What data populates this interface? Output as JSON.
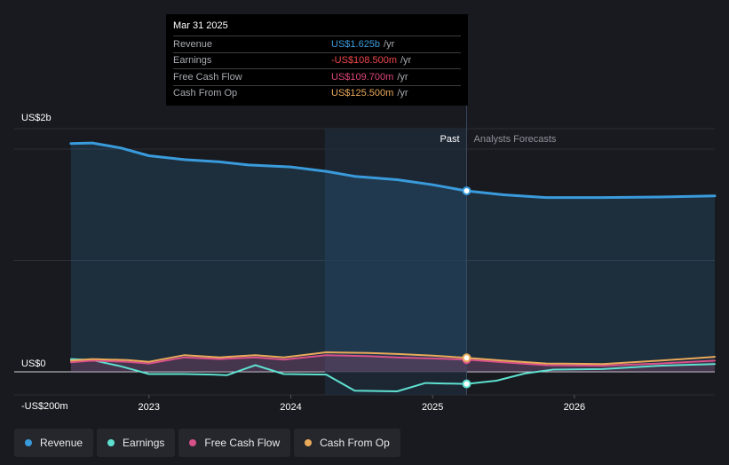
{
  "tooltip": {
    "date": "Mar 31 2025",
    "rows": [
      {
        "label": "Revenue",
        "value": "US$1.625b",
        "unit": "/yr",
        "color": "#3a9bdc"
      },
      {
        "label": "Earnings",
        "value": "-US$108.500m",
        "unit": "/yr",
        "color": "#f0484b"
      },
      {
        "label": "Free Cash Flow",
        "value": "US$109.700m",
        "unit": "/yr",
        "color": "#e0457b"
      },
      {
        "label": "Cash From Op",
        "value": "US$125.500m",
        "unit": "/yr",
        "color": "#eaaa5a"
      }
    ]
  },
  "legend": [
    {
      "label": "Revenue",
      "color": "#3a9bdc"
    },
    {
      "label": "Earnings",
      "color": "#5ee0d0"
    },
    {
      "label": "Free Cash Flow",
      "color": "#d8508a"
    },
    {
      "label": "Cash From Op",
      "color": "#eaaa5a"
    }
  ],
  "chart_data": {
    "type": "line",
    "title": "",
    "y_unit": "US$ millions",
    "y_tick_labels": [
      {
        "label": "US$2b",
        "value": 2000
      },
      {
        "label": "US$0",
        "value": 0
      },
      {
        "label": "-US$200m",
        "value": -200
      }
    ],
    "ylim": [
      -220,
      2200
    ],
    "xlim": [
      2022.25,
      2026.99
    ],
    "x_ticks": [
      2023,
      2024,
      2025,
      2026
    ],
    "x_tick_labels": [
      "2023",
      "2024",
      "2025",
      "2026"
    ],
    "past_label": "Past",
    "forecast_label": "Analysts Forecasts",
    "past_range": [
      2024.24,
      2025.24
    ],
    "selected_x": 2025.24,
    "series": [
      {
        "name": "Revenue",
        "color": "#3a9bdc",
        "area": true,
        "points": [
          [
            2022.45,
            2050
          ],
          [
            2022.6,
            2055
          ],
          [
            2022.8,
            2010
          ],
          [
            2023.0,
            1940
          ],
          [
            2023.25,
            1905
          ],
          [
            2023.5,
            1885
          ],
          [
            2023.7,
            1857
          ],
          [
            2024.0,
            1840
          ],
          [
            2024.25,
            1800
          ],
          [
            2024.45,
            1755
          ],
          [
            2024.75,
            1725
          ],
          [
            2025.0,
            1680
          ],
          [
            2025.24,
            1625
          ],
          [
            2025.5,
            1590
          ],
          [
            2025.8,
            1565
          ],
          [
            2026.2,
            1565
          ],
          [
            2026.6,
            1570
          ],
          [
            2026.99,
            1580
          ]
        ]
      },
      {
        "name": "Earnings",
        "color": "#5ee0d0",
        "area": false,
        "points": [
          [
            2022.45,
            115
          ],
          [
            2022.6,
            105
          ],
          [
            2022.8,
            50
          ],
          [
            2023.0,
            -20
          ],
          [
            2023.25,
            -20
          ],
          [
            2023.45,
            -25
          ],
          [
            2023.55,
            -30
          ],
          [
            2023.75,
            60
          ],
          [
            2023.95,
            -20
          ],
          [
            2024.25,
            -25
          ],
          [
            2024.45,
            -170
          ],
          [
            2024.75,
            -175
          ],
          [
            2024.95,
            -100
          ],
          [
            2025.1,
            -105
          ],
          [
            2025.24,
            -108.5
          ],
          [
            2025.45,
            -80
          ],
          [
            2025.65,
            -15
          ],
          [
            2025.85,
            20
          ],
          [
            2026.2,
            25
          ],
          [
            2026.6,
            55
          ],
          [
            2026.99,
            70
          ]
        ]
      },
      {
        "name": "Free Cash Flow",
        "color": "#d8508a",
        "area": true,
        "points": [
          [
            2022.45,
            85
          ],
          [
            2022.6,
            100
          ],
          [
            2022.85,
            90
          ],
          [
            2023.0,
            75
          ],
          [
            2023.25,
            130
          ],
          [
            2023.5,
            115
          ],
          [
            2023.75,
            130
          ],
          [
            2023.95,
            110
          ],
          [
            2024.25,
            150
          ],
          [
            2024.55,
            140
          ],
          [
            2024.75,
            130
          ],
          [
            2025.0,
            120
          ],
          [
            2025.24,
            109.7
          ],
          [
            2025.5,
            85
          ],
          [
            2025.8,
            60
          ],
          [
            2026.2,
            55
          ],
          [
            2026.6,
            75
          ],
          [
            2026.99,
            100
          ]
        ]
      },
      {
        "name": "Cash From Op",
        "color": "#eaaa5a",
        "area": false,
        "points": [
          [
            2022.45,
            100
          ],
          [
            2022.6,
            115
          ],
          [
            2022.85,
            105
          ],
          [
            2023.0,
            90
          ],
          [
            2023.25,
            150
          ],
          [
            2023.5,
            130
          ],
          [
            2023.75,
            150
          ],
          [
            2023.95,
            130
          ],
          [
            2024.25,
            175
          ],
          [
            2024.55,
            170
          ],
          [
            2024.75,
            160
          ],
          [
            2025.0,
            145
          ],
          [
            2025.24,
            125.5
          ],
          [
            2025.5,
            100
          ],
          [
            2025.8,
            75
          ],
          [
            2026.2,
            70
          ],
          [
            2026.6,
            100
          ],
          [
            2026.99,
            135
          ]
        ]
      }
    ]
  }
}
